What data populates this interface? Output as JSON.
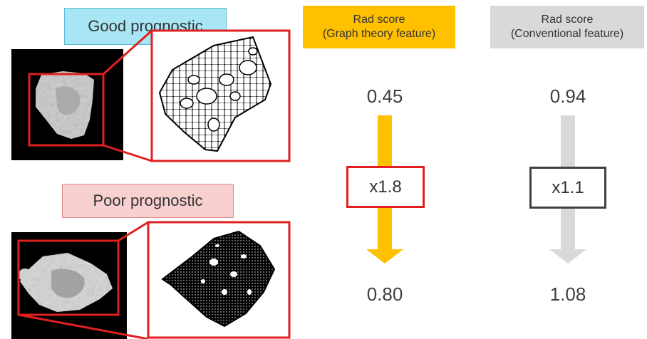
{
  "labels": {
    "good": "Good prognostic",
    "poor": "Poor prognostic"
  },
  "headers": {
    "graph_line1": "Rad score",
    "graph_line2": "(Graph theory feature)",
    "conv_line1": "Rad score",
    "conv_line2": "(Conventional feature)"
  },
  "graph": {
    "top": "0.45",
    "mult": "x1.8",
    "bottom": "0.80"
  },
  "conventional": {
    "top": "0.94",
    "mult": "x1.1",
    "bottom": "1.08"
  },
  "colors": {
    "graph_accent": "#ffc000",
    "conv_accent": "#d9d9d9",
    "highlight_red": "#e02020",
    "good_bg": "#a8e6f5",
    "poor_bg": "#f9d0d0"
  }
}
